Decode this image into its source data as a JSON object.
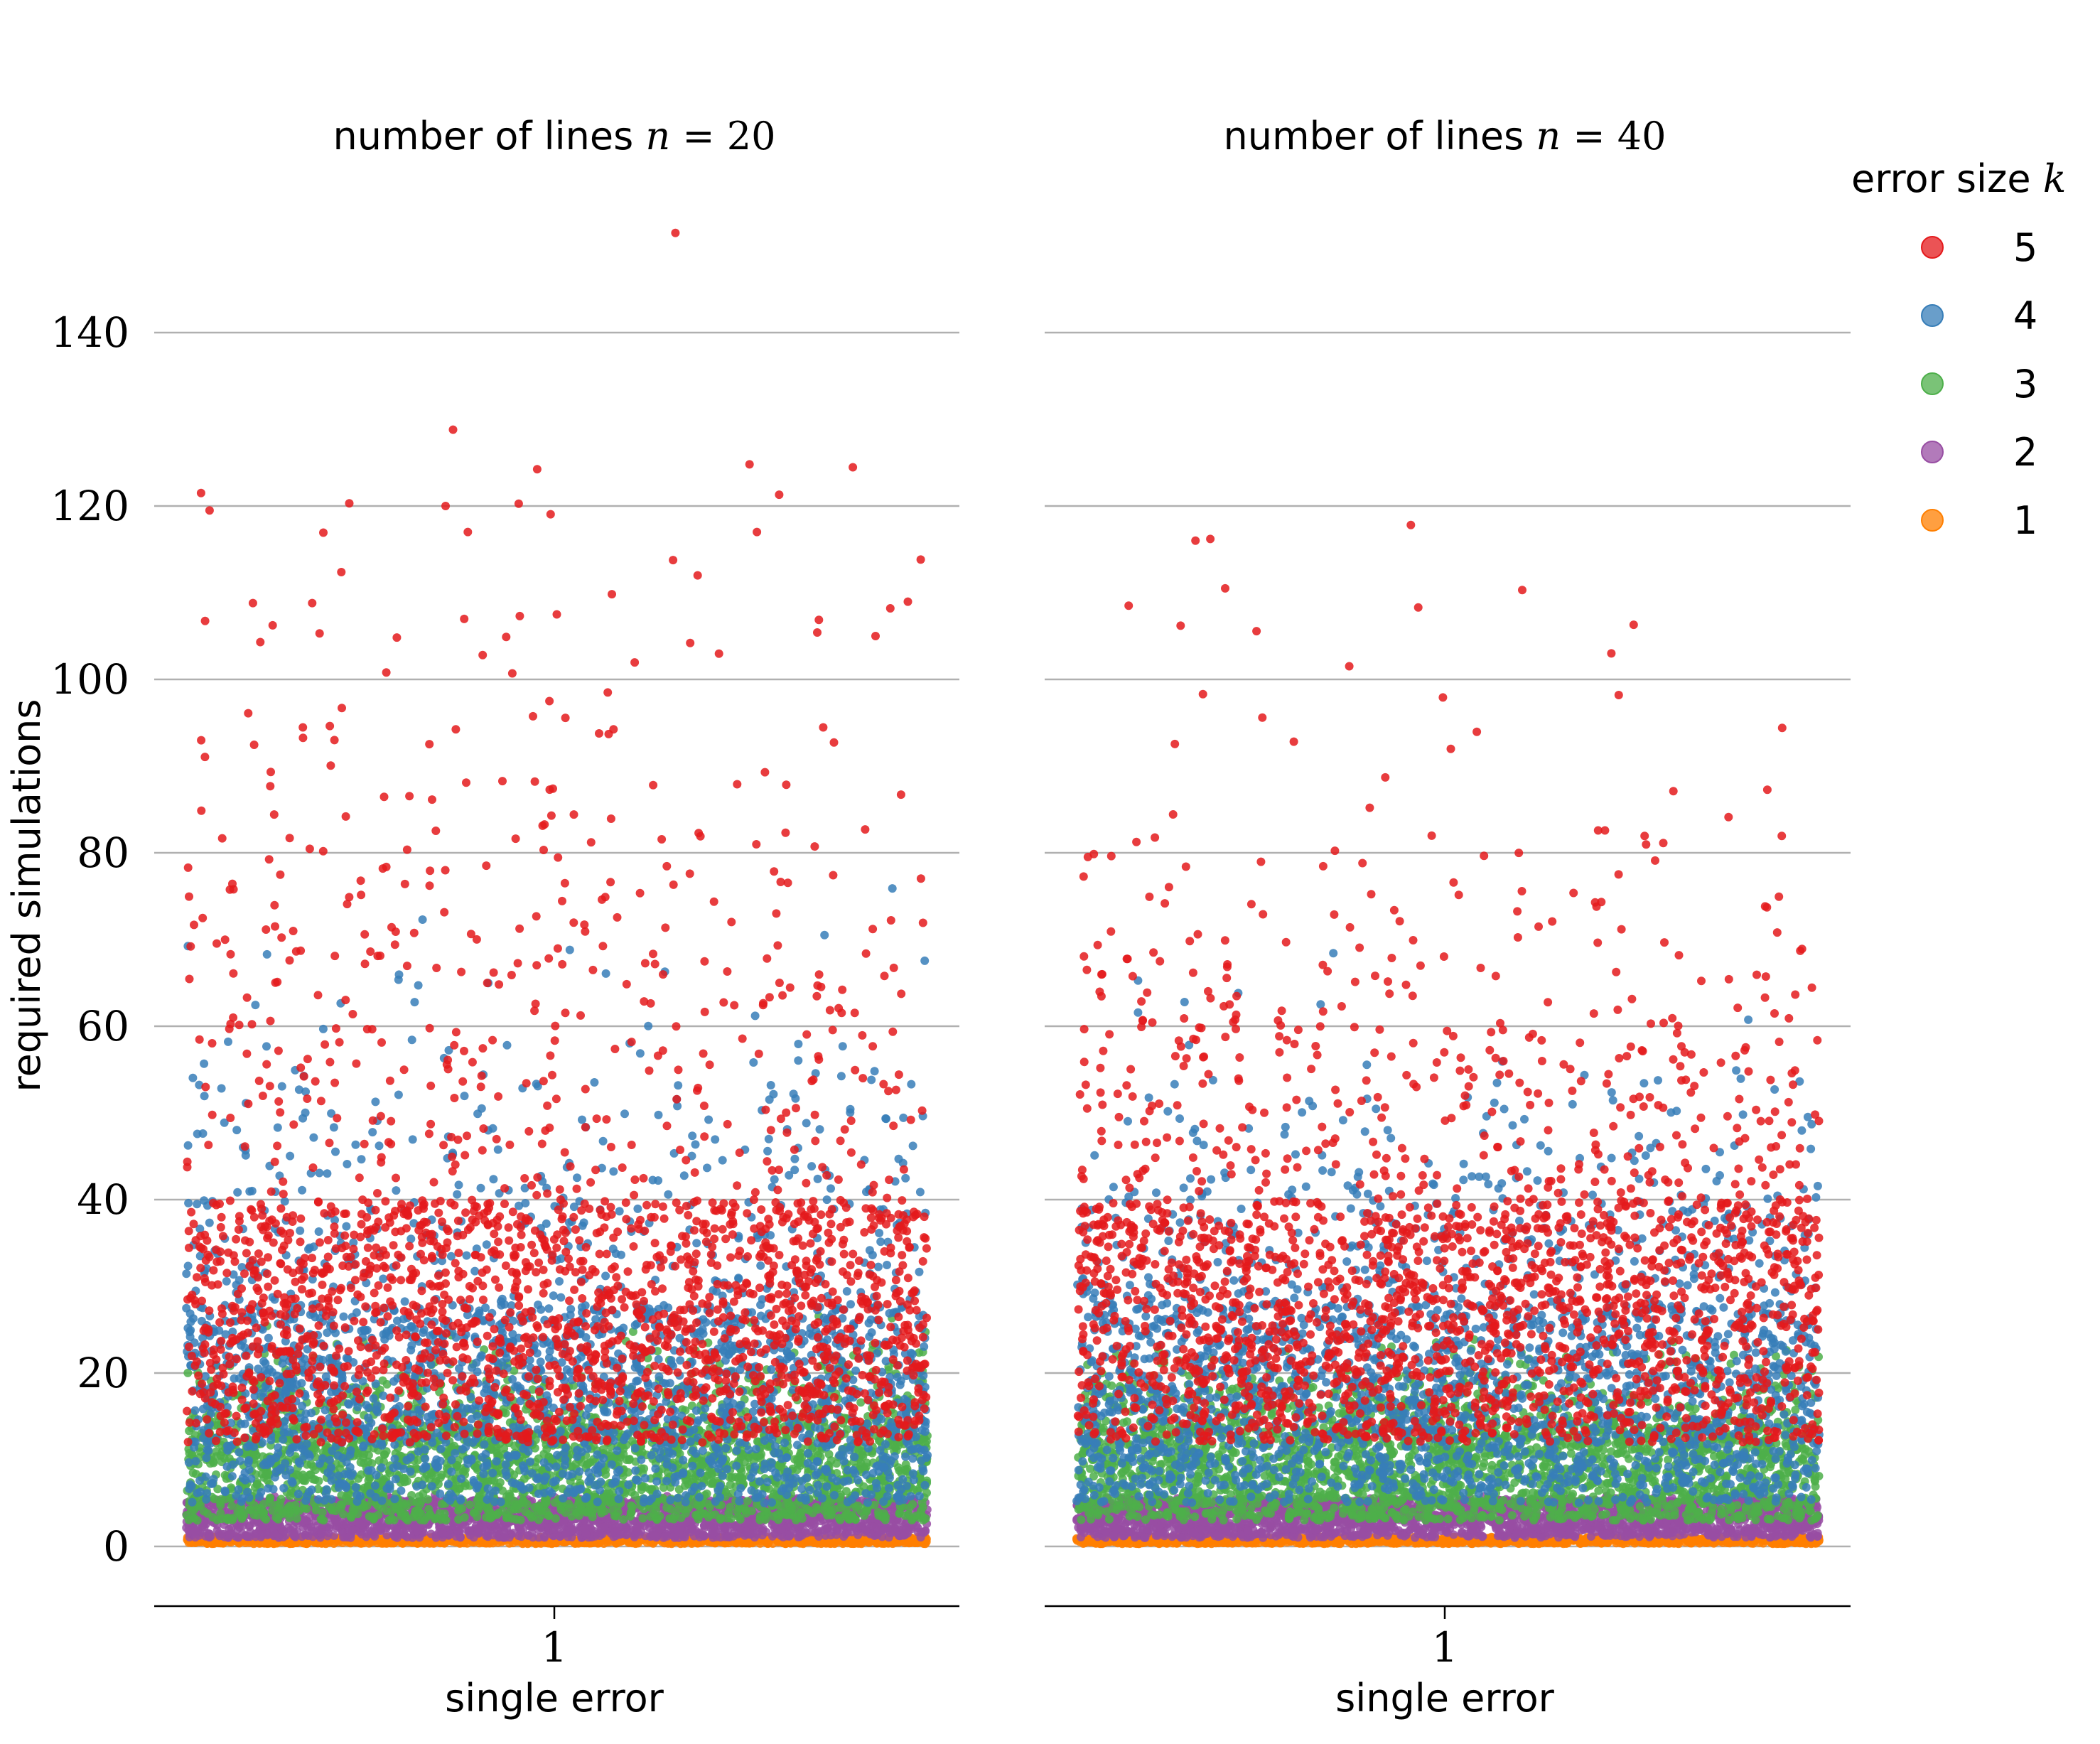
{
  "chart_data": [
    {
      "type": "scatter",
      "title_text": "number of lines",
      "title_var": "n",
      "title_eq": " = 20",
      "ylabel": "required simulations",
      "xlabel": "single error",
      "x_ticks": [
        "1"
      ],
      "y_ticks": [
        "0",
        "20",
        "40",
        "60",
        "80",
        "100",
        "120",
        "140"
      ],
      "ylim": [
        -7,
        155
      ],
      "grid": true,
      "series": [
        {
          "name": "1",
          "color": "#ff7f00",
          "range": [
            0,
            1
          ],
          "core": [
            0,
            1
          ],
          "count": 1200
        },
        {
          "name": "2",
          "color": "#984ea3",
          "range": [
            1,
            6
          ],
          "core": [
            1,
            5
          ],
          "count": 2400
        },
        {
          "name": "3",
          "color": "#4daf4a",
          "range": [
            2,
            29
          ],
          "core": [
            3,
            14
          ],
          "count": 2600
        },
        {
          "name": "4",
          "color": "#377eb8",
          "range": [
            3,
            88
          ],
          "core": [
            5,
            28
          ],
          "count": 2200
        },
        {
          "name": "5",
          "color": "#e41a1c",
          "range": [
            5,
            151
          ],
          "core": [
            12,
            40
          ],
          "count": 2200
        }
      ],
      "outliers_k5": [
        [
          0.02,
          121.5
        ],
        [
          0.36,
          128.8
        ],
        [
          0.35,
          120
        ],
        [
          0.38,
          117
        ],
        [
          0.22,
          120.3
        ],
        [
          0.76,
          124.8
        ],
        [
          0.8,
          121.3
        ],
        [
          0.77,
          117
        ],
        [
          0.66,
          151.5
        ],
        [
          0.09,
          108.8
        ],
        [
          0.17,
          108.8
        ],
        [
          0.45,
          107.3
        ],
        [
          0.5,
          107.5
        ],
        [
          0.69,
          112
        ],
        [
          0.95,
          108.2
        ],
        [
          0.93,
          105
        ],
        [
          0.1,
          104.3
        ],
        [
          0.18,
          105.3
        ],
        [
          0.27,
          100.8
        ],
        [
          0.4,
          102.8
        ],
        [
          0.44,
          100.7
        ],
        [
          0.68,
          104.2
        ],
        [
          0.49,
          97.5
        ],
        [
          0.21,
          96.7
        ],
        [
          0.2,
          93
        ],
        [
          0.57,
          93.7
        ],
        [
          0.63,
          87.8
        ]
      ]
    },
    {
      "type": "scatter",
      "title_text": "number of lines",
      "title_var": "n",
      "title_eq": " = 40",
      "ylabel": "",
      "xlabel": "single error",
      "x_ticks": [
        "1"
      ],
      "y_ticks": [
        "0",
        "20",
        "40",
        "60",
        "80",
        "100",
        "120",
        "140"
      ],
      "ylim": [
        -7,
        155
      ],
      "grid": true,
      "series": [
        {
          "name": "1",
          "color": "#ff7f00",
          "range": [
            0,
            1
          ],
          "core": [
            0,
            1
          ],
          "count": 1200
        },
        {
          "name": "2",
          "color": "#984ea3",
          "range": [
            1,
            6
          ],
          "core": [
            1,
            5
          ],
          "count": 2400
        },
        {
          "name": "3",
          "color": "#4daf4a",
          "range": [
            2,
            27
          ],
          "core": [
            3,
            14
          ],
          "count": 2600
        },
        {
          "name": "4",
          "color": "#377eb8",
          "range": [
            3,
            76
          ],
          "core": [
            5,
            28
          ],
          "count": 2200
        },
        {
          "name": "5",
          "color": "#e41a1c",
          "range": [
            5,
            118
          ],
          "core": [
            12,
            40
          ],
          "count": 2200
        }
      ],
      "outliers_k5": [
        [
          0.16,
          116
        ],
        [
          0.18,
          116.2
        ],
        [
          0.45,
          117.8
        ],
        [
          0.2,
          110.5
        ],
        [
          0.6,
          110.3
        ],
        [
          0.07,
          108.5
        ],
        [
          0.46,
          108.3
        ],
        [
          0.14,
          106.2
        ],
        [
          0.75,
          106.3
        ],
        [
          0.72,
          103
        ],
        [
          0.73,
          98.2
        ],
        [
          0.17,
          98.3
        ],
        [
          0.25,
          95.6
        ],
        [
          0.95,
          94.4
        ]
      ]
    }
  ],
  "legend": {
    "title_text": "error size",
    "title_var": "k",
    "items": [
      {
        "label": "5",
        "color": "#e41a1c"
      },
      {
        "label": "4",
        "color": "#377eb8"
      },
      {
        "label": "3",
        "color": "#4daf4a"
      },
      {
        "label": "2",
        "color": "#984ea3"
      },
      {
        "label": "1",
        "color": "#ff7f00"
      }
    ]
  }
}
